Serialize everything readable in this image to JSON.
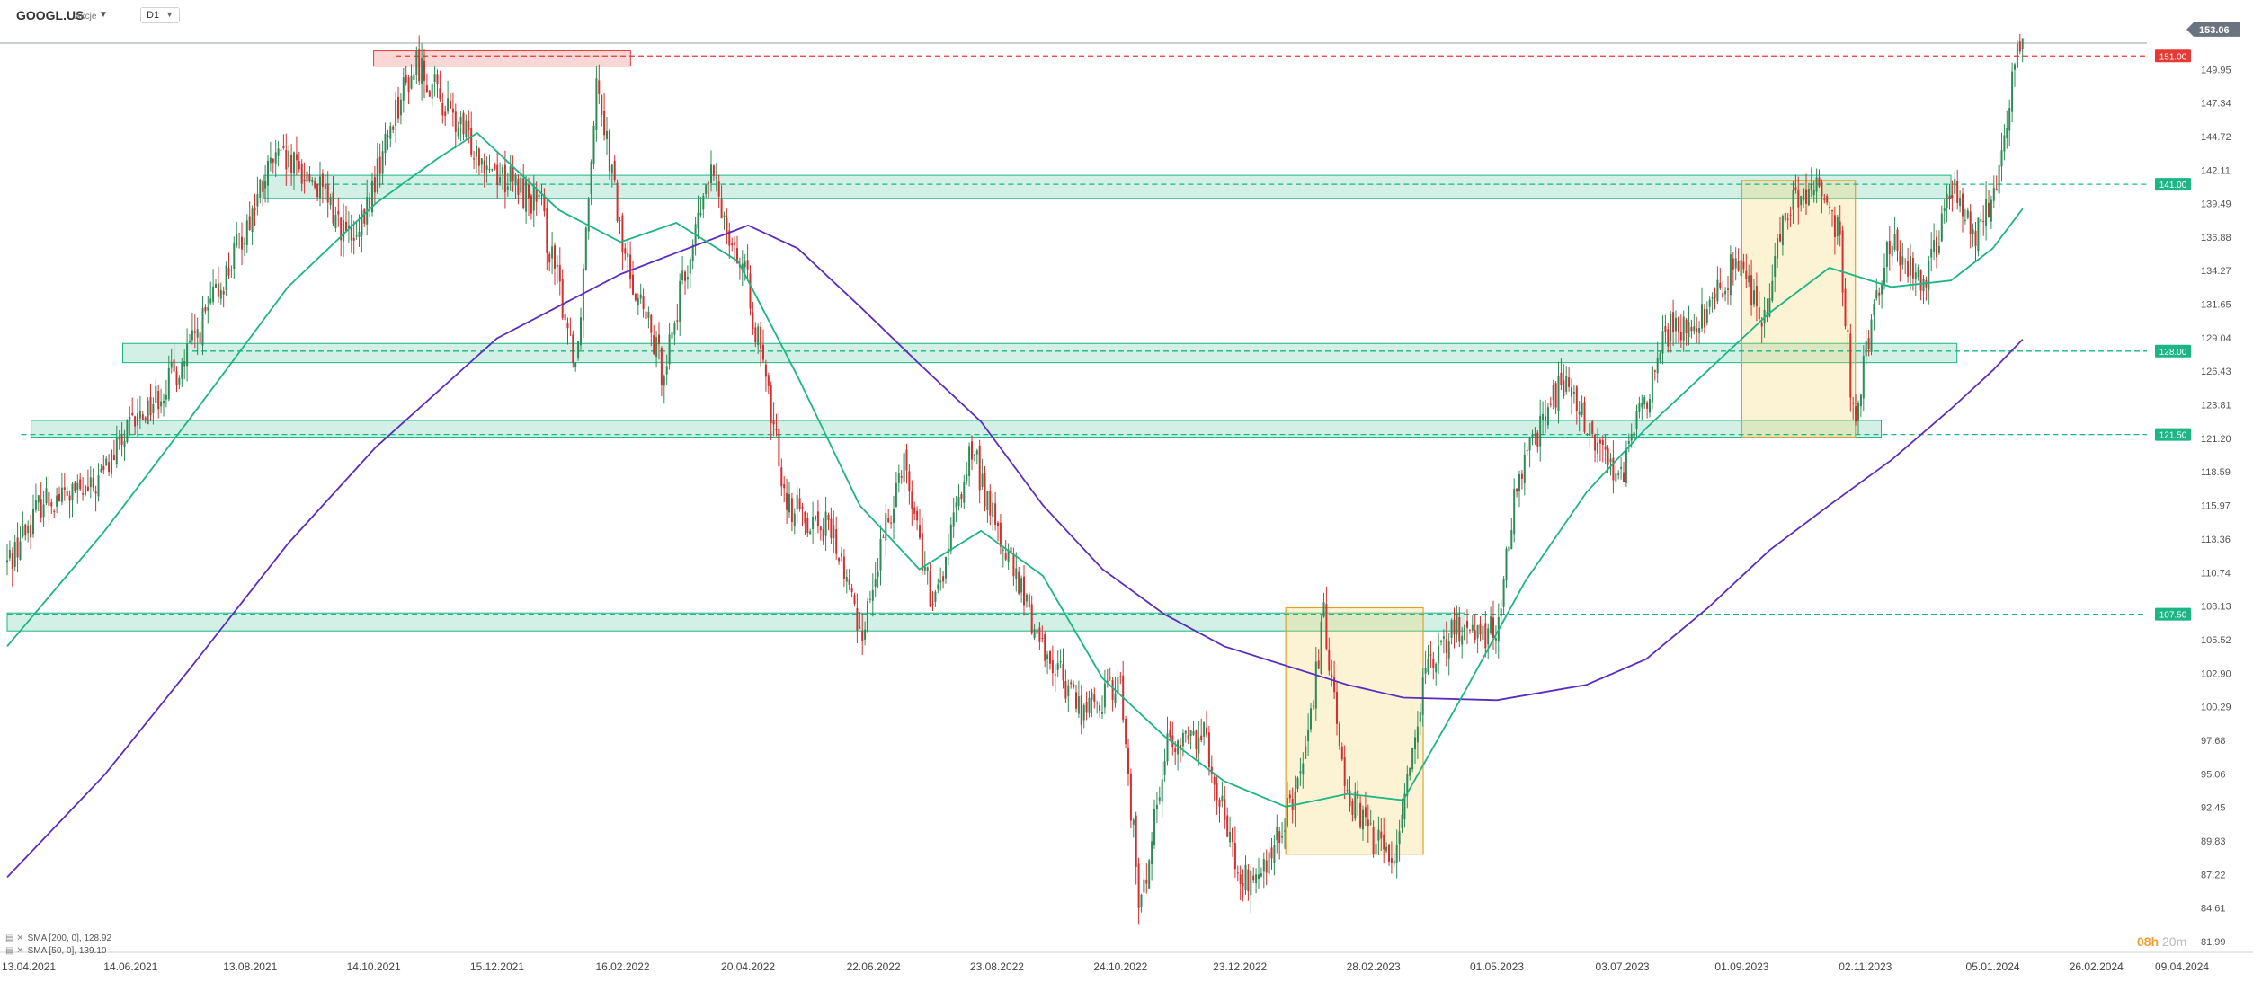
{
  "header": {
    "symbol": "GOOGL.US",
    "instrument_type": "Akcje",
    "timeframe": "D1"
  },
  "timer": {
    "hours": "08h",
    "minutes": "20m"
  },
  "colors": {
    "up_candle": "#2e8b57",
    "down_candle": "#d32f2f",
    "sma50": "#1db584",
    "sma200": "#5b2dbf",
    "zone_green": "#1db584",
    "zone_red": "#e53935",
    "box_yellow": "#f6d365"
  },
  "chart_data": {
    "type": "candlestick",
    "title": "",
    "y_ticks": [
      "149.95",
      "147.34",
      "144.72",
      "142.11",
      "139.49",
      "136.88",
      "134.27",
      "131.65",
      "129.04",
      "126.43",
      "123.81",
      "121.20",
      "118.59",
      "115.97",
      "113.36",
      "110.74",
      "108.13",
      "105.52",
      "102.90",
      "100.29",
      "97.68",
      "95.06",
      "92.45",
      "89.83",
      "87.22",
      "84.61",
      "81.99"
    ],
    "x_ticks": [
      "13.04.2021",
      "14.06.2021",
      "13.08.2021",
      "14.10.2021",
      "15.12.2021",
      "16.02.2022",
      "20.04.2022",
      "22.06.2022",
      "23.08.2022",
      "24.10.2022",
      "23.12.2022",
      "28.02.2023",
      "01.05.2023",
      "03.07.2023",
      "01.09.2023",
      "02.11.2023",
      "05.01.2024",
      "26.02.2024",
      "09.04.2024"
    ],
    "last_price": "153.06",
    "levels": [
      {
        "value": 151.0,
        "label": "151.00",
        "color": "red"
      },
      {
        "value": 141.0,
        "label": "141.00",
        "color": "green"
      },
      {
        "value": 128.0,
        "label": "128.00",
        "color": "green"
      },
      {
        "value": 121.5,
        "label": "121.50",
        "color": "green"
      },
      {
        "value": 107.5,
        "label": "107.50",
        "color": "green"
      }
    ],
    "zones": [
      {
        "color": "red",
        "from": "14.10.2021",
        "to": "20.02.2022",
        "low": 150.2,
        "high": 151.4
      },
      {
        "color": "green",
        "from": "20.08.2021",
        "to": "15.12.2023",
        "low": 139.9,
        "high": 141.7
      },
      {
        "color": "green",
        "from": "10.06.2021",
        "to": "18.12.2023",
        "low": 127.1,
        "high": 128.6
      },
      {
        "color": "green",
        "from": "25.04.2021",
        "to": "10.11.2023",
        "low": 121.3,
        "high": 122.6
      },
      {
        "color": "green",
        "from": "13.04.2021",
        "to": "15.04.2023",
        "low": 106.2,
        "high": 107.6
      }
    ],
    "highlight_boxes": [
      {
        "from": "15.01.2023",
        "to": "25.03.2023",
        "low": 88.8,
        "high": 108.0
      },
      {
        "from": "01.09.2023",
        "to": "28.10.2023",
        "low": 121.3,
        "high": 141.3
      }
    ],
    "sma_legend": [
      {
        "name": "SMA [200, 0]",
        "value": "128.92"
      },
      {
        "name": "SMA [50, 0]",
        "value": "139.10"
      }
    ],
    "price_path": [
      [
        "13.04.2021",
        111.5
      ],
      [
        "01.05.2021",
        116.5
      ],
      [
        "25.05.2021",
        117.0
      ],
      [
        "14.06.2021",
        122.0
      ],
      [
        "10.07.2021",
        127.0
      ],
      [
        "01.08.2021",
        134.0
      ],
      [
        "25.08.2021",
        143.0
      ],
      [
        "13.09.2021",
        141.5
      ],
      [
        "05.10.2021",
        136.0
      ],
      [
        "25.10.2021",
        147.0
      ],
      [
        "05.11.2021",
        150.5
      ],
      [
        "25.11.2021",
        145.5
      ],
      [
        "15.12.2021",
        142.0
      ],
      [
        "05.01.2022",
        139.5
      ],
      [
        "24.01.2022",
        127.0
      ],
      [
        "03.02.2022",
        150.0
      ],
      [
        "16.02.2022",
        136.0
      ],
      [
        "08.03.2022",
        126.5
      ],
      [
        "01.04.2022",
        142.0
      ],
      [
        "20.04.2022",
        133.0
      ],
      [
        "10.05.2022",
        116.0
      ],
      [
        "01.06.2022",
        114.0
      ],
      [
        "16.06.2022",
        106.0
      ],
      [
        "07.07.2022",
        120.0
      ],
      [
        "22.07.2022",
        107.5
      ],
      [
        "10.08.2022",
        120.5
      ],
      [
        "23.08.2022",
        114.0
      ],
      [
        "15.09.2022",
        105.0
      ],
      [
        "05.10.2022",
        100.0
      ],
      [
        "24.10.2022",
        102.0
      ],
      [
        "03.11.2022",
        84.0
      ],
      [
        "15.11.2022",
        97.0
      ],
      [
        "05.12.2022",
        98.5
      ],
      [
        "23.12.2022",
        86.5
      ],
      [
        "05.01.2023",
        87.5
      ],
      [
        "25.01.2023",
        96.0
      ],
      [
        "03.02.2023",
        107.5
      ],
      [
        "15.02.2023",
        93.5
      ],
      [
        "28.02.2023",
        90.0
      ],
      [
        "10.03.2023",
        88.5
      ],
      [
        "25.03.2023",
        102.0
      ],
      [
        "10.04.2023",
        106.5
      ],
      [
        "01.05.2023",
        106.0
      ],
      [
        "10.05.2023",
        116.5
      ],
      [
        "25.05.2023",
        123.5
      ],
      [
        "05.06.2023",
        125.5
      ],
      [
        "20.06.2023",
        120.5
      ],
      [
        "03.07.2023",
        118.5
      ],
      [
        "25.07.2023",
        129.5
      ],
      [
        "15.08.2023",
        131.0
      ],
      [
        "01.09.2023",
        136.0
      ],
      [
        "10.09.2023",
        130.0
      ],
      [
        "25.09.2023",
        139.5
      ],
      [
        "10.10.2023",
        141.0
      ],
      [
        "20.10.2023",
        137.0
      ],
      [
        "27.10.2023",
        122.5
      ],
      [
        "05.11.2023",
        130.5
      ],
      [
        "15.11.2023",
        137.0
      ],
      [
        "02.12.2023",
        133.0
      ],
      [
        "15.12.2023",
        141.0
      ],
      [
        "27.12.2023",
        136.5
      ],
      [
        "05.01.2024",
        140.0
      ],
      [
        "10.01.2024",
        145.0
      ],
      [
        "15.01.2024",
        149.0
      ],
      [
        "20.01.2024",
        153.06
      ]
    ],
    "sma50_path": [
      [
        "13.04.2021",
        105.0
      ],
      [
        "01.06.2021",
        114.0
      ],
      [
        "15.07.2021",
        123.0
      ],
      [
        "01.09.2021",
        133.0
      ],
      [
        "15.10.2021",
        139.5
      ],
      [
        "15.11.2021",
        143.0
      ],
      [
        "05.12.2021",
        145.0
      ],
      [
        "15.01.2022",
        139.0
      ],
      [
        "15.02.2022",
        136.5
      ],
      [
        "15.03.2022",
        138.0
      ],
      [
        "15.04.2022",
        135.0
      ],
      [
        "15.05.2022",
        126.0
      ],
      [
        "15.06.2022",
        116.0
      ],
      [
        "15.07.2022",
        111.0
      ],
      [
        "15.08.2022",
        114.0
      ],
      [
        "15.09.2022",
        110.5
      ],
      [
        "15.10.2022",
        102.5
      ],
      [
        "15.11.2022",
        98.0
      ],
      [
        "15.12.2022",
        94.5
      ],
      [
        "15.01.2023",
        92.5
      ],
      [
        "15.02.2023",
        93.5
      ],
      [
        "15.03.2023",
        93.0
      ],
      [
        "15.04.2023",
        101.5
      ],
      [
        "15.05.2023",
        110.0
      ],
      [
        "15.06.2023",
        117.0
      ],
      [
        "15.07.2023",
        122.0
      ],
      [
        "15.08.2023",
        126.5
      ],
      [
        "15.09.2023",
        131.0
      ],
      [
        "15.10.2023",
        134.5
      ],
      [
        "15.11.2023",
        133.0
      ],
      [
        "15.12.2023",
        133.5
      ],
      [
        "05.01.2024",
        136.0
      ],
      [
        "20.01.2024",
        139.1
      ]
    ],
    "sma200_path": [
      [
        "13.04.2021",
        87.0
      ],
      [
        "01.06.2021",
        95.0
      ],
      [
        "15.07.2021",
        103.5
      ],
      [
        "01.09.2021",
        113.0
      ],
      [
        "15.10.2021",
        120.5
      ],
      [
        "15.12.2021",
        129.0
      ],
      [
        "15.02.2022",
        134.0
      ],
      [
        "15.04.2022",
        137.5
      ],
      [
        "20.04.2022",
        137.8
      ],
      [
        "15.05.2022",
        136.0
      ],
      [
        "15.06.2022",
        131.5
      ],
      [
        "15.07.2022",
        127.0
      ],
      [
        "15.08.2022",
        122.5
      ],
      [
        "15.09.2022",
        116.0
      ],
      [
        "15.10.2022",
        111.0
      ],
      [
        "15.11.2022",
        107.5
      ],
      [
        "15.12.2022",
        105.0
      ],
      [
        "15.02.2023",
        102.0
      ],
      [
        "15.03.2023",
        101.0
      ],
      [
        "01.05.2023",
        100.8
      ],
      [
        "15.06.2023",
        102.0
      ],
      [
        "15.07.2023",
        104.0
      ],
      [
        "15.08.2023",
        108.0
      ],
      [
        "15.09.2023",
        112.5
      ],
      [
        "15.10.2023",
        116.0
      ],
      [
        "15.11.2023",
        119.5
      ],
      [
        "15.12.2023",
        123.5
      ],
      [
        "05.01.2024",
        126.5
      ],
      [
        "20.01.2024",
        128.92
      ]
    ]
  }
}
